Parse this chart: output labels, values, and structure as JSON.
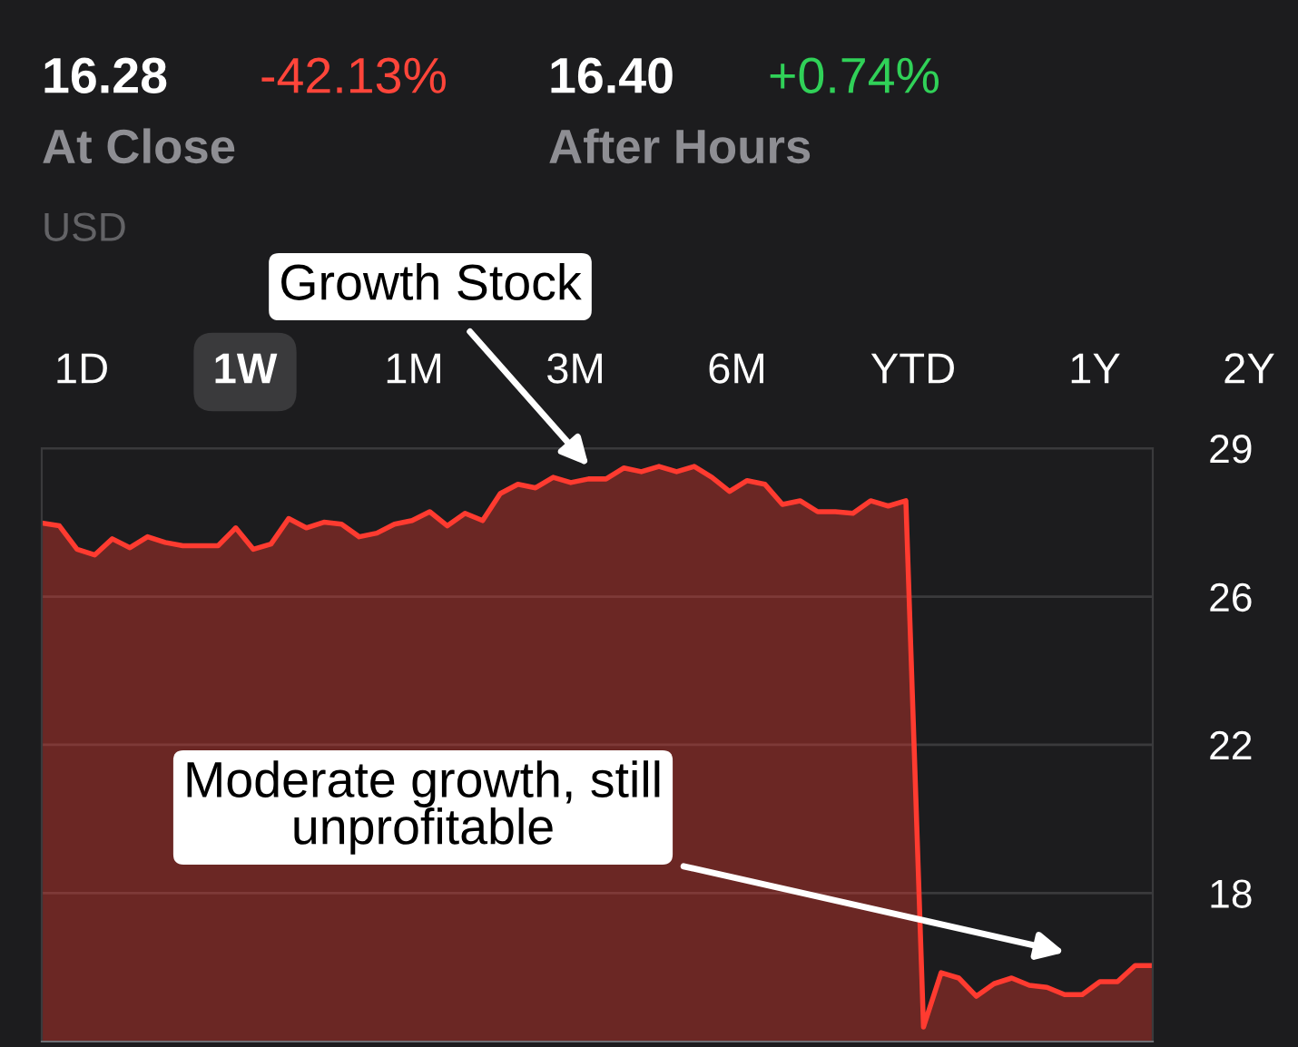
{
  "chart_data": {
    "type": "area",
    "categories": [
      null,
      null,
      null,
      null,
      null,
      null,
      null,
      null,
      null,
      null,
      null,
      null,
      null,
      null,
      null,
      null,
      null,
      null,
      null,
      null,
      null,
      null,
      null,
      null,
      null,
      null,
      null,
      null,
      null,
      null,
      null,
      null,
      null,
      null,
      null,
      null,
      null,
      null,
      null,
      null,
      null,
      null,
      null,
      null,
      null,
      null,
      null,
      null,
      null,
      null,
      null,
      null,
      null,
      null,
      null,
      null,
      null,
      null,
      null,
      null,
      null,
      null,
      null,
      null
    ],
    "series": [
      {
        "color": "#ff3b30",
        "values": [
          27.35,
          27.28,
          26.7,
          26.56,
          26.96,
          26.74,
          27.01,
          26.87,
          26.79,
          26.79,
          26.79,
          27.23,
          26.7,
          26.83,
          27.46,
          27.23,
          27.37,
          27.32,
          27.01,
          27.1,
          27.32,
          27.41,
          27.63,
          27.28,
          27.59,
          27.41,
          28.08,
          28.31,
          28.22,
          28.48,
          28.35,
          28.44,
          28.44,
          28.71,
          28.62,
          28.75,
          28.62,
          28.75,
          28.48,
          28.13,
          28.4,
          28.31,
          27.81,
          27.9,
          27.63,
          27.63,
          27.59,
          27.9,
          27.77,
          27.9,
          14.89,
          16.23,
          16.1,
          15.65,
          15.96,
          16.1,
          15.92,
          15.87,
          15.69,
          15.69,
          16.01,
          16.01,
          16.41,
          16.41
        ]
      }
    ],
    "ylim": [
      14.53,
      29.2
    ],
    "yticks": [
      {
        "value": 18.2,
        "label": "18"
      },
      {
        "value": 21.87,
        "label": "22"
      },
      {
        "value": 25.53,
        "label": "26"
      },
      {
        "value": 29.2,
        "label": "29"
      }
    ],
    "grid": "y",
    "tick_labels": "y",
    "annotations": [
      "16.28",
      "-42.13%",
      "At Close",
      "16.40",
      "+0.74%",
      "After Hours",
      "USD",
      "1D",
      "1W",
      "1M",
      "3M",
      "6M",
      "YTD",
      "1Y",
      "2Y",
      "Growth Stock",
      "Moderate growth, still unprofitable"
    ]
  }
}
